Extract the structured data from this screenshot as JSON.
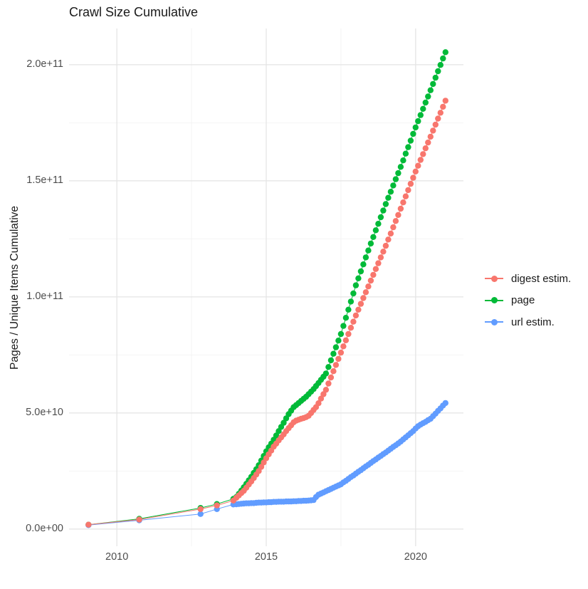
{
  "title": "Crawl Size Cumulative",
  "y_axis_title": "Pages / Unique Items Cumulative",
  "colors": {
    "background": "#ffffff",
    "grid_major": "#e4e4e4",
    "grid_minor": "#f2f2f2",
    "axis_text": "#4d4d4d",
    "title_text": "#1a1a1a"
  },
  "chart_data": {
    "type": "scatter",
    "subtype": "line-with-points",
    "title": "Crawl Size Cumulative",
    "xlabel": "",
    "ylabel": "Pages / Unique Items Cumulative",
    "values_unit": "items, stored as billions (1 = 1e9)",
    "legend_position": "right",
    "grid": true,
    "axes": {
      "x_range": [
        2008.4,
        2021.6
      ],
      "y_range_e9": [
        -7.4,
        215.6
      ],
      "x_ticks": [
        {
          "v": 2010,
          "label": "2010"
        },
        {
          "v": 2015,
          "label": "2015"
        },
        {
          "v": 2020,
          "label": "2020"
        }
      ],
      "x_minor": [
        2012.5,
        2017.5
      ],
      "y_ticks": [
        {
          "v": 0,
          "label": "0.0e+00"
        },
        {
          "v": 50,
          "label": "5.0e+10"
        },
        {
          "v": 100,
          "label": "1.0e+11"
        },
        {
          "v": 150,
          "label": "1.5e+11"
        },
        {
          "v": 200,
          "label": "2.0e+11"
        }
      ],
      "y_minor": [
        25,
        75,
        125,
        175
      ]
    },
    "series": [
      {
        "name": "digest estim.",
        "color": "#F8766D",
        "draw_order": 2,
        "points_early": [
          [
            2009.05,
            1.9
          ],
          [
            2010.75,
            4.1
          ],
          [
            2012.8,
            8.6
          ],
          [
            2013.35,
            10.2
          ],
          [
            2013.9,
            12.3
          ]
        ],
        "monthly_start": 2014.0,
        "monthly_step_years": 0.083333,
        "monthly_values_e9": [
          13.5,
          14.5,
          15.5,
          16.5,
          17.8,
          19.2,
          20.5,
          22.0,
          23.5,
          25.0,
          26.8,
          28.7,
          30.5,
          32.2,
          33.8,
          35.5,
          36.8,
          38.2,
          39.5,
          40.8,
          42.2,
          43.5,
          44.7,
          46.0,
          46.7,
          47.1,
          47.5,
          47.8,
          48.2,
          48.8,
          50.0,
          51.3,
          52.5,
          54.2,
          56.2,
          58.1,
          60.0,
          62.7,
          65.3,
          68.0,
          70.7,
          73.3,
          76.0,
          78.7,
          81.3,
          84.0,
          86.7,
          89.3,
          92.0,
          94.5,
          97.0,
          99.5,
          102.0,
          104.5,
          107.0,
          109.5,
          112.0,
          114.5,
          117.0,
          119.5,
          122.0,
          124.7,
          127.3,
          130.0,
          132.7,
          135.3,
          138.0,
          140.7,
          143.3,
          146.0,
          148.7,
          151.3,
          154.0,
          156.5,
          159.0,
          161.5,
          164.0,
          166.5,
          169.0,
          171.6,
          174.2,
          176.8,
          179.3,
          181.9,
          184.5
        ]
      },
      {
        "name": "page",
        "color": "#00BA38",
        "draw_order": 0,
        "points_early": [
          [
            2009.05,
            1.9
          ],
          [
            2010.75,
            4.4
          ],
          [
            2012.8,
            9.1
          ],
          [
            2013.35,
            10.8
          ],
          [
            2013.9,
            13.0
          ]
        ],
        "monthly_start": 2014.0,
        "monthly_step_years": 0.083333,
        "monthly_values_e9": [
          13.8,
          15.2,
          16.6,
          18.0,
          19.5,
          21.0,
          22.5,
          24.2,
          25.8,
          27.5,
          29.5,
          31.5,
          33.5,
          35.2,
          36.8,
          38.5,
          40.3,
          42.2,
          44.0,
          45.8,
          47.7,
          49.5,
          51.0,
          52.5,
          53.4,
          54.3,
          55.2,
          56.1,
          57.0,
          58.1,
          59.2,
          60.3,
          61.6,
          62.9,
          64.3,
          65.6,
          67.0,
          69.8,
          72.7,
          75.5,
          78.3,
          81.2,
          84.0,
          87.5,
          91.0,
          94.5,
          98.0,
          101.5,
          105.0,
          108.0,
          111.0,
          114.0,
          117.0,
          120.0,
          123.0,
          125.8,
          128.7,
          131.5,
          134.3,
          137.2,
          140.0,
          142.7,
          145.3,
          148.0,
          150.7,
          153.3,
          156.0,
          158.8,
          161.7,
          164.5,
          167.3,
          170.2,
          173.0,
          175.7,
          178.3,
          181.0,
          183.7,
          186.3,
          189.0,
          191.7,
          194.4,
          197.2,
          199.9,
          202.7,
          205.4
        ]
      },
      {
        "name": "url estim.",
        "color": "#619CFF",
        "draw_order": 1,
        "points_early": [
          [
            2009.05,
            1.7
          ],
          [
            2010.75,
            3.8
          ],
          [
            2012.8,
            6.5
          ],
          [
            2013.35,
            8.6
          ],
          [
            2013.9,
            10.6
          ]
        ],
        "monthly_start": 2014.0,
        "monthly_step_years": 0.083333,
        "monthly_values_e9": [
          10.7,
          10.8,
          10.9,
          11.0,
          11.1,
          11.1,
          11.2,
          11.2,
          11.3,
          11.4,
          11.4,
          11.5,
          11.5,
          11.6,
          11.6,
          11.7,
          11.7,
          11.8,
          11.8,
          11.8,
          11.9,
          11.9,
          11.9,
          12.0,
          12.0,
          12.1,
          12.1,
          12.2,
          12.2,
          12.3,
          12.4,
          12.5,
          13.8,
          14.8,
          15.3,
          15.8,
          16.3,
          16.8,
          17.3,
          17.8,
          18.3,
          18.8,
          19.3,
          20.1,
          20.8,
          21.6,
          22.4,
          23.1,
          23.9,
          24.7,
          25.4,
          26.2,
          27.0,
          27.7,
          28.5,
          29.3,
          30.0,
          30.8,
          31.5,
          32.3,
          33.0,
          33.8,
          34.6,
          35.4,
          36.1,
          36.9,
          37.7,
          38.6,
          39.5,
          40.4,
          41.3,
          42.2,
          43.3,
          44.3,
          45.0,
          45.6,
          46.2,
          46.9,
          47.5,
          48.6,
          49.7,
          50.9,
          52.0,
          53.2,
          54.3
        ]
      }
    ]
  }
}
